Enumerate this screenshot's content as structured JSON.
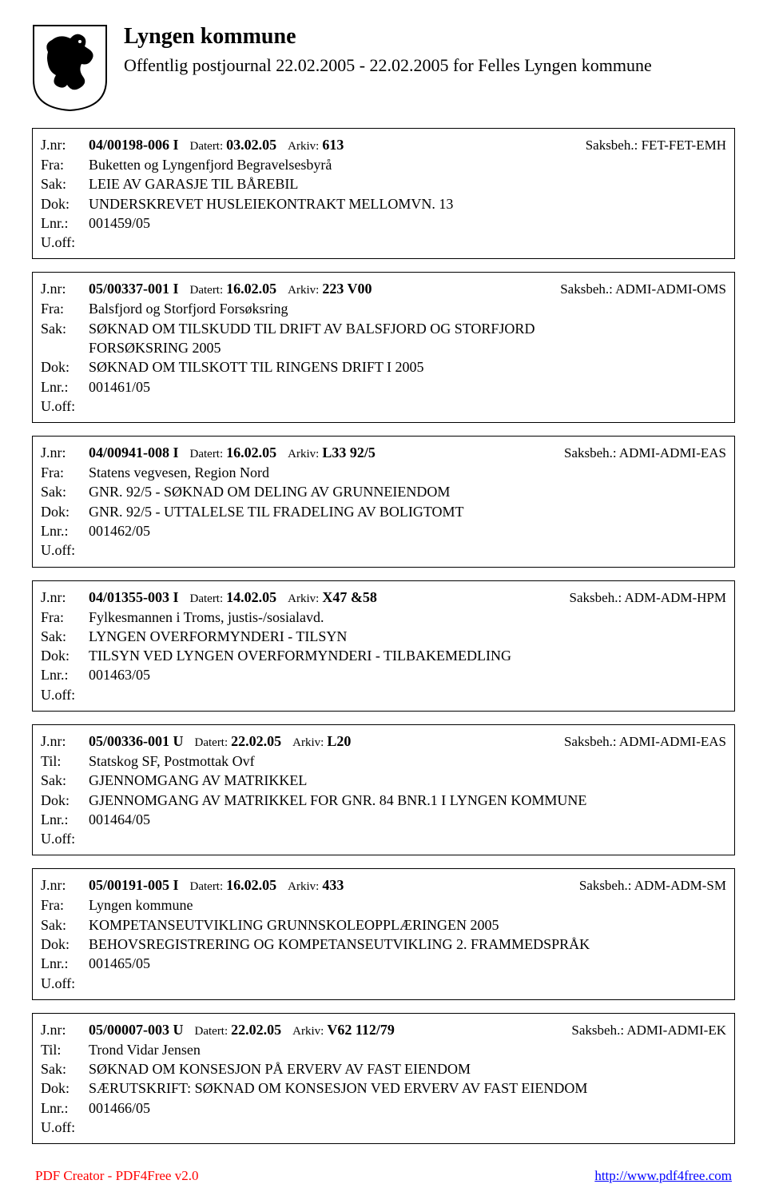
{
  "header": {
    "title": "Lyngen kommune",
    "subtitle": "Offentlig postjournal 22.02.2005 - 22.02.2005 for Felles Lyngen kommune"
  },
  "labels": {
    "jnr": "J.nr:",
    "fra": "Fra:",
    "til": "Til:",
    "sak": "Sak:",
    "dok": "Dok:",
    "lnr": "Lnr.:",
    "uoff": "U.off:",
    "datert": "Datert:",
    "arkiv": "Arkiv:",
    "saksbeh": "Saksbeh.:"
  },
  "entries": [
    {
      "jnr": "04/00198-006 I",
      "datert": "03.02.05",
      "arkiv": "613",
      "saksbeh": "FET-FET-EMH",
      "party_label": "Fra:",
      "party": "Buketten og Lyngenfjord Begravelsesbyrå",
      "sak": "LEIE AV GARASJE TIL BÅREBIL",
      "dok": "UNDERSKREVET HUSLEIEKONTRAKT MELLOMVN. 13",
      "lnr": "001459/05",
      "uoff": ""
    },
    {
      "jnr": "05/00337-001 I",
      "datert": "16.02.05",
      "arkiv": "223 V00",
      "saksbeh": "ADMI-ADMI-OMS",
      "party_label": "Fra:",
      "party": "Balsfjord og Storfjord Forsøksring",
      "sak": "SØKNAD OM TILSKUDD TIL DRIFT AV BALSFJORD OG STORFJORD",
      "sak2": "FORSØKSRING 2005",
      "dok": "SØKNAD OM TILSKOTT TIL RINGENS DRIFT I 2005",
      "lnr": "001461/05",
      "uoff": ""
    },
    {
      "jnr": "04/00941-008 I",
      "datert": "16.02.05",
      "arkiv": "L33  92/5",
      "saksbeh": "ADMI-ADMI-EAS",
      "party_label": "Fra:",
      "party": "Statens vegvesen, Region Nord",
      "sak": "GNR. 92/5 - SØKNAD OM DELING AV GRUNNEIENDOM",
      "dok": "GNR. 92/5 - UTTALELSE TIL FRADELING AV BOLIGTOMT",
      "lnr": "001462/05",
      "uoff": ""
    },
    {
      "jnr": "04/01355-003 I",
      "datert": "14.02.05",
      "arkiv": "X47 &58",
      "saksbeh": "ADM-ADM-HPM",
      "party_label": "Fra:",
      "party": "Fylkesmannen i Troms, justis-/sosialavd.",
      "sak": "LYNGEN OVERFORMYNDERI - TILSYN",
      "dok": "TILSYN VED LYNGEN OVERFORMYNDERI - TILBAKEMEDLING",
      "lnr": "001463/05",
      "uoff": ""
    },
    {
      "jnr": "05/00336-001 U",
      "datert": "22.02.05",
      "arkiv": "L20",
      "saksbeh": "ADMI-ADMI-EAS",
      "party_label": "Til:",
      "party": "Statskog SF, Postmottak Ovf",
      "sak": "GJENNOMGANG AV MATRIKKEL",
      "dok": "GJENNOMGANG AV MATRIKKEL FOR GNR. 84  BNR.1 I LYNGEN KOMMUNE",
      "lnr": "001464/05",
      "uoff": ""
    },
    {
      "jnr": "05/00191-005 I",
      "datert": "16.02.05",
      "arkiv": "433",
      "saksbeh": "ADM-ADM-SM",
      "party_label": "Fra:",
      "party": "Lyngen kommune",
      "sak": "KOMPETANSEUTVIKLING GRUNNSKOLEOPPLÆRINGEN 2005",
      "dok": "BEHOVSREGISTRERING OG KOMPETANSEUTVIKLING 2. FRAMMEDSPRÅK",
      "lnr": "001465/05",
      "uoff": ""
    },
    {
      "jnr": "05/00007-003 U",
      "datert": "22.02.05",
      "arkiv": "V62  112/79",
      "saksbeh": "ADMI-ADMI-EK",
      "party_label": "Til:",
      "party": "Trond Vidar Jensen",
      "sak": "SØKNAD OM KONSESJON PÅ ERVERV AV FAST EIENDOM",
      "dok": "SÆRUTSKRIFT: SØKNAD OM KONSESJON VED ERVERV AV FAST EIENDOM",
      "lnr": "001466/05",
      "uoff": ""
    }
  ],
  "footer": {
    "left": "PDF Creator - PDF4Free v2.0",
    "right": "http://www.pdf4free.com"
  },
  "style": {
    "background": "#ffffff",
    "text_color": "#000000",
    "border_color": "#000000",
    "footer_left_color": "#ff0000",
    "footer_right_color": "#0000ff",
    "body_fontsize": 18,
    "title_fontsize": 28,
    "subtitle_fontsize": 22
  }
}
